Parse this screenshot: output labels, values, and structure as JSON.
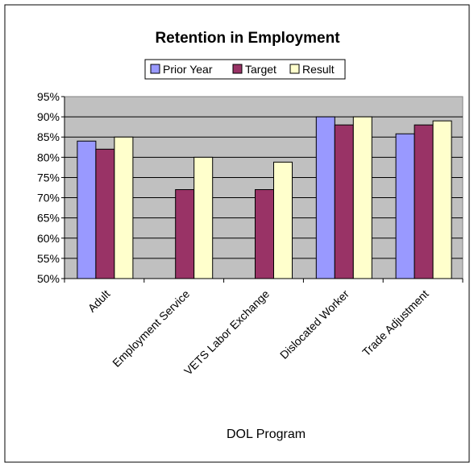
{
  "chart_data": {
    "type": "bar",
    "title": "Retention in Employment",
    "xlabel": "DOL Program",
    "ylabel": "",
    "categories": [
      "Adult",
      "Employment Service",
      "VETS Labor Exchange",
      "Dislocated Worker",
      "Trade Adjustment"
    ],
    "series": [
      {
        "name": "Prior Year",
        "color": "#9999ff",
        "values": [
          84,
          null,
          null,
          90,
          85.8
        ]
      },
      {
        "name": "Target",
        "color": "#993366",
        "values": [
          82,
          72,
          72,
          88,
          88
        ]
      },
      {
        "name": "Result",
        "color": "#ffffcc",
        "values": [
          85,
          80,
          78.8,
          90,
          89
        ]
      }
    ],
    "ylim": [
      50,
      95
    ],
    "yticks": [
      "50%",
      "55%",
      "60%",
      "65%",
      "70%",
      "75%",
      "80%",
      "85%",
      "90%",
      "95%"
    ],
    "grid": true,
    "legend": "top",
    "plot_background": "#c0c0c0"
  }
}
